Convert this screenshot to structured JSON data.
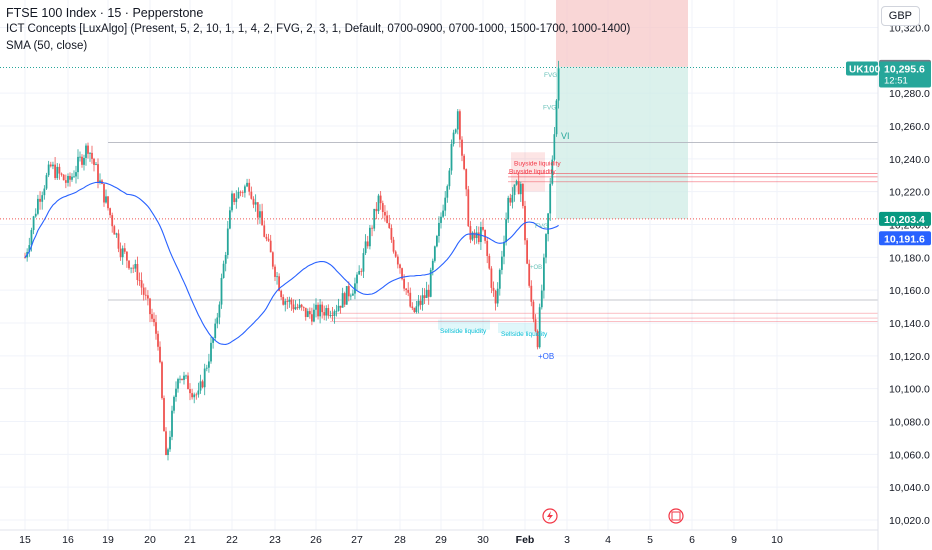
{
  "header": {
    "title": "FTSE 100 Index · 15 · Pepperstone",
    "indicator1": "ICT Concepts [LuxAlgo] (Present, 5, 2, 10, 1, 1, 4, 2, FVG, 2, 3, 1, Default, 0700-0900, 0700-1000, 1500-1700, 1000-1400)",
    "indicator2": "SMA (50, close)",
    "currency": "GBP"
  },
  "price_tags": {
    "target": "10,296.0",
    "symbol": "UK100",
    "current": "10,295.6",
    "countdown": "12:51",
    "stop": "10,203.4",
    "sma": "10,191.6"
  },
  "annotations": {
    "buyside1": "Buyside liquidity",
    "buyside2": "Buyside liquidity",
    "sellside1": "Sellside liquidity",
    "sellside2": "Sellside liquidity",
    "ob": "+OB",
    "vi": "VI",
    "fvg1": "FVG",
    "fvg2": "FVG",
    "fvg3": "FVG",
    "ob_small": "+OB"
  },
  "colors": {
    "up": "#26a69a",
    "down": "#ef5350",
    "sma": "#2962ff",
    "target_zone": "#f7c8c8",
    "stop_zone": "#cfece6",
    "buyside": "#f23645",
    "sellside": "#00bcd4"
  },
  "chart_data": {
    "type": "candlestick",
    "ylim": [
      10015,
      10335
    ],
    "yticks": [
      10020,
      10040,
      10060,
      10080,
      10100,
      10120,
      10140,
      10160,
      10180,
      10200,
      10220,
      10240,
      10260,
      10280,
      10320
    ],
    "ytick_labels": [
      "10,020.0",
      "10,040.0",
      "10,060.0",
      "10,080.0",
      "10,100.0",
      "10,120.0",
      "10,140.0",
      "10,160.0",
      "10,180.0",
      "10,200.0",
      "10,220.0",
      "10,240.0",
      "10,260.0",
      "10,280.0",
      "10,320.0"
    ],
    "xticks": [
      "15",
      "16",
      "19",
      "20",
      "21",
      "22",
      "23",
      "26",
      "27",
      "28",
      "29",
      "30",
      "Feb",
      "3",
      "4",
      "5",
      "6",
      "9",
      "10"
    ],
    "current_price": 10295.6,
    "sma_last": 10191.6,
    "position": {
      "entry": 10203.4,
      "target": 10296.0
    },
    "anchors": [
      {
        "day": 0.0,
        "price": 10180
      },
      {
        "day": 0.3,
        "price": 10215
      },
      {
        "day": 0.6,
        "price": 10235
      },
      {
        "day": 1.0,
        "price": 10225
      },
      {
        "day": 1.5,
        "price": 10248
      },
      {
        "day": 2.0,
        "price": 10210
      },
      {
        "day": 2.3,
        "price": 10185
      },
      {
        "day": 2.7,
        "price": 10170
      },
      {
        "day": 3.2,
        "price": 10130
      },
      {
        "day": 3.4,
        "price": 10055
      },
      {
        "day": 3.7,
        "price": 10110
      },
      {
        "day": 4.2,
        "price": 10095
      },
      {
        "day": 4.6,
        "price": 10135
      },
      {
        "day": 5.0,
        "price": 10215
      },
      {
        "day": 5.4,
        "price": 10225
      },
      {
        "day": 5.8,
        "price": 10190
      },
      {
        "day": 6.2,
        "price": 10155
      },
      {
        "day": 6.8,
        "price": 10145
      },
      {
        "day": 7.5,
        "price": 10150
      },
      {
        "day": 8.0,
        "price": 10165
      },
      {
        "day": 8.5,
        "price": 10215
      },
      {
        "day": 9.0,
        "price": 10175
      },
      {
        "day": 9.3,
        "price": 10145
      },
      {
        "day": 9.7,
        "price": 10160
      },
      {
        "day": 10.1,
        "price": 10220
      },
      {
        "day": 10.4,
        "price": 10270
      },
      {
        "day": 10.7,
        "price": 10190
      },
      {
        "day": 11.0,
        "price": 10195
      },
      {
        "day": 11.3,
        "price": 10150
      },
      {
        "day": 11.6,
        "price": 10215
      },
      {
        "day": 11.9,
        "price": 10225
      },
      {
        "day": 12.1,
        "price": 10160
      },
      {
        "day": 12.3,
        "price": 10130
      },
      {
        "day": 12.55,
        "price": 10205
      },
      {
        "day": 12.8,
        "price": 10295
      }
    ]
  }
}
